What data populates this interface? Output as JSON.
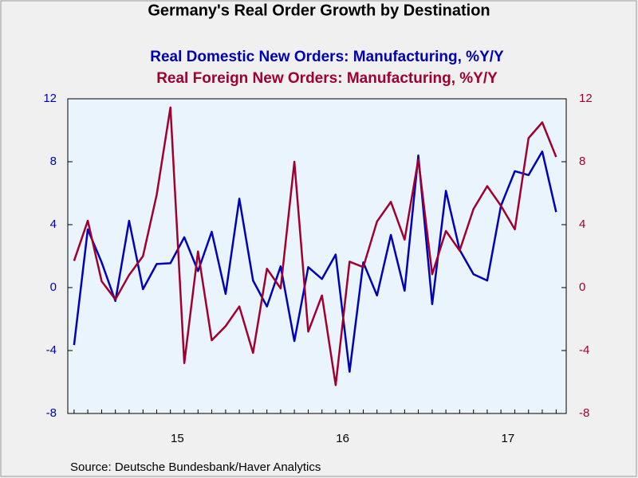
{
  "chart_data": {
    "type": "line",
    "title": "Germany's Real Order Growth by Destination",
    "source": "Source:  Deutsche Bundesbank/Haver Analytics",
    "x": [
      2014.875,
      2014.958,
      2015.042,
      2015.125,
      2015.208,
      2015.292,
      2015.375,
      2015.458,
      2015.542,
      2015.625,
      2015.708,
      2015.792,
      2015.875,
      2015.958,
      2016.042,
      2016.125,
      2016.208,
      2016.292,
      2016.375,
      2016.458,
      2016.542,
      2016.625,
      2016.708,
      2016.792,
      2016.875,
      2016.958,
      2017.042,
      2017.125,
      2017.208,
      2017.292,
      2017.375,
      2017.458,
      2017.542,
      2017.625,
      2017.708,
      2017.792
    ],
    "xlim": [
      2014.837,
      2017.853
    ],
    "xticks": [
      {
        "value": 2015.5,
        "label": "15"
      },
      {
        "value": 2016.5,
        "label": "16"
      },
      {
        "value": 2017.5,
        "label": "17"
      }
    ],
    "ylim": [
      -8,
      12
    ],
    "yticks": [
      -8,
      -4,
      0,
      4,
      8,
      12
    ],
    "y2lim": [
      -8,
      12
    ],
    "y2ticks": [
      -8,
      -4,
      0,
      4,
      8,
      12
    ],
    "series": [
      {
        "name": "Real Domestic New Orders: Manufacturing, %Y/Y",
        "color": "#0000b4",
        "axis": "y",
        "values": [
          -3.65,
          3.7,
          1.6,
          -0.85,
          4.25,
          -0.1,
          1.5,
          1.55,
          3.2,
          1.05,
          3.55,
          -0.4,
          5.65,
          0.45,
          -1.2,
          1.35,
          -3.4,
          1.3,
          0.55,
          2.1,
          -5.35,
          1.6,
          -0.5,
          3.35,
          -0.2,
          8.4,
          -1.05,
          6.15,
          2.4,
          0.85,
          0.45,
          5.2,
          7.4,
          7.15,
          8.65,
          4.8
        ]
      },
      {
        "name": "Real Foreign New Orders: Manufacturing, %Y/Y",
        "color": "#a00030",
        "axis": "y2",
        "values": [
          1.7,
          4.25,
          0.4,
          -0.75,
          0.8,
          2.0,
          5.9,
          11.45,
          -4.8,
          2.3,
          -3.35,
          -2.45,
          -1.2,
          -4.15,
          1.2,
          -0.05,
          8.0,
          -2.8,
          -0.5,
          -6.2,
          1.65,
          1.3,
          4.2,
          5.45,
          3.05,
          8.15,
          0.85,
          3.6,
          2.35,
          5.0,
          6.45,
          5.2,
          3.7,
          9.5,
          10.5,
          8.3
        ]
      }
    ]
  }
}
